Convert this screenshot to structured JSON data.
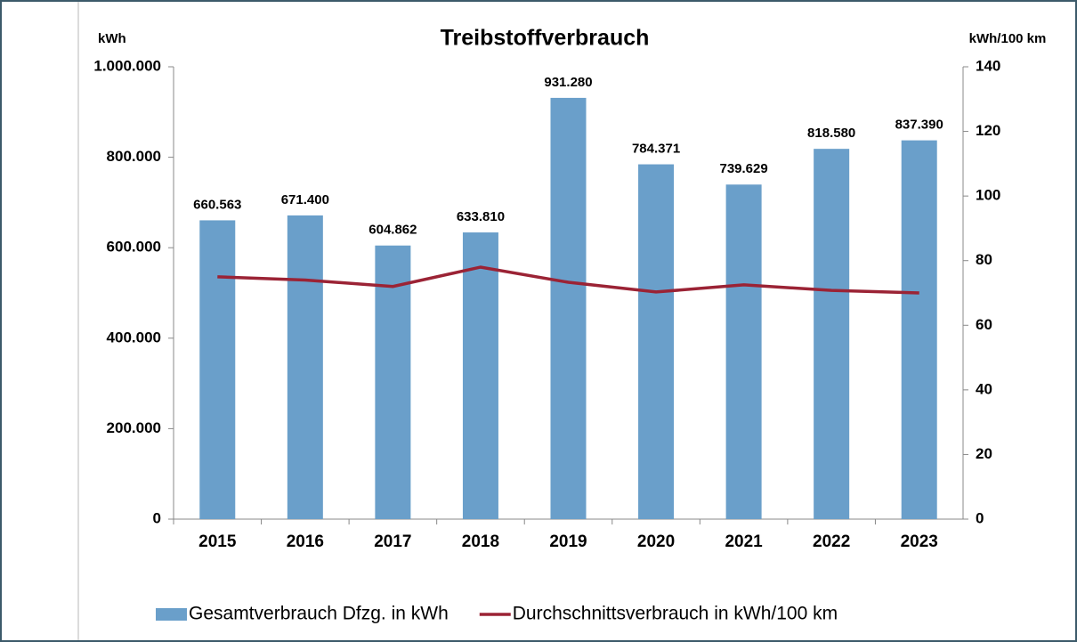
{
  "chart_data": {
    "type": "bar",
    "title": "Treibstoffverbrauch",
    "y_label": "kWh",
    "y2_label": "kWh/100 km",
    "categories": [
      "2015",
      "2016",
      "2017",
      "2018",
      "2019",
      "2020",
      "2021",
      "2022",
      "2023"
    ],
    "series": [
      {
        "name": "Gesamtverbrauch Dfzg. in kWh",
        "type": "bar",
        "color": "#6a9fca",
        "values": [
          660563,
          671400,
          604862,
          633810,
          931280,
          784371,
          739629,
          818580,
          837390
        ],
        "value_labels": [
          "660.563",
          "671.400",
          "604.862",
          "633.810",
          "931.280",
          "784.371",
          "739.629",
          "818.580",
          "837.390"
        ]
      },
      {
        "name": "Durchschnittsverbrauch in kWh/100 km",
        "type": "line",
        "axis": "y2",
        "color": "#9b2335",
        "values": [
          75,
          74,
          72,
          78,
          73.3,
          70.3,
          72.5,
          70.8,
          70
        ]
      }
    ],
    "ylim": [
      0,
      1000000
    ],
    "yticks": [
      0,
      {
        "value": 200000,
        "label": "200.000"
      },
      {
        "value": 400000,
        "label": "400.000"
      },
      {
        "value": 600000,
        "label": "600.000"
      },
      {
        "value": 800000,
        "label": "800.000"
      },
      {
        "value": 1000000,
        "label": "1.000.000"
      }
    ],
    "y2lim": [
      0,
      140
    ],
    "y2ticks": [
      0,
      20,
      40,
      60,
      80,
      100,
      120,
      140
    ],
    "legend": "bottom"
  }
}
